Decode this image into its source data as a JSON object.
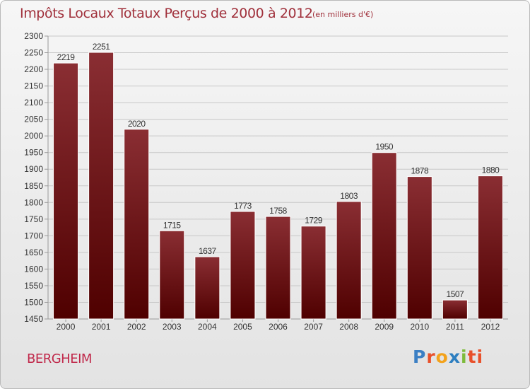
{
  "header": {
    "title": "Impôts Locaux Totaux Perçus de 2000 à 2012",
    "unit_note": "(en milliers d'€)"
  },
  "footer": {
    "city": "BERGHEIM",
    "brand": [
      "P",
      "r",
      "o",
      "x",
      "i",
      "ti"
    ]
  },
  "colors": {
    "bar_top": "#8a2e33",
    "bar_bottom": "#4f0000",
    "grid": "#c8c8c8",
    "text": "#333333",
    "title": "#a0303b"
  },
  "chart_data": {
    "type": "bar",
    "title": "Impôts Locaux Totaux Perçus de 2000 à 2012",
    "subtitle": "(en milliers d'€)",
    "xlabel": "",
    "ylabel": "",
    "categories": [
      "2000",
      "2001",
      "2002",
      "2003",
      "2004",
      "2005",
      "2006",
      "2007",
      "2008",
      "2009",
      "2010",
      "2011",
      "2012"
    ],
    "values": [
      2219,
      2251,
      2020,
      1715,
      1637,
      1773,
      1758,
      1729,
      1803,
      1950,
      1878,
      1507,
      1880
    ],
    "ylim": [
      1450,
      2300
    ],
    "yticks": [
      1450,
      1500,
      1550,
      1600,
      1650,
      1700,
      1750,
      1800,
      1850,
      1900,
      1950,
      2000,
      2050,
      2100,
      2150,
      2200,
      2250,
      2300
    ],
    "grid": true,
    "legend": "none"
  }
}
